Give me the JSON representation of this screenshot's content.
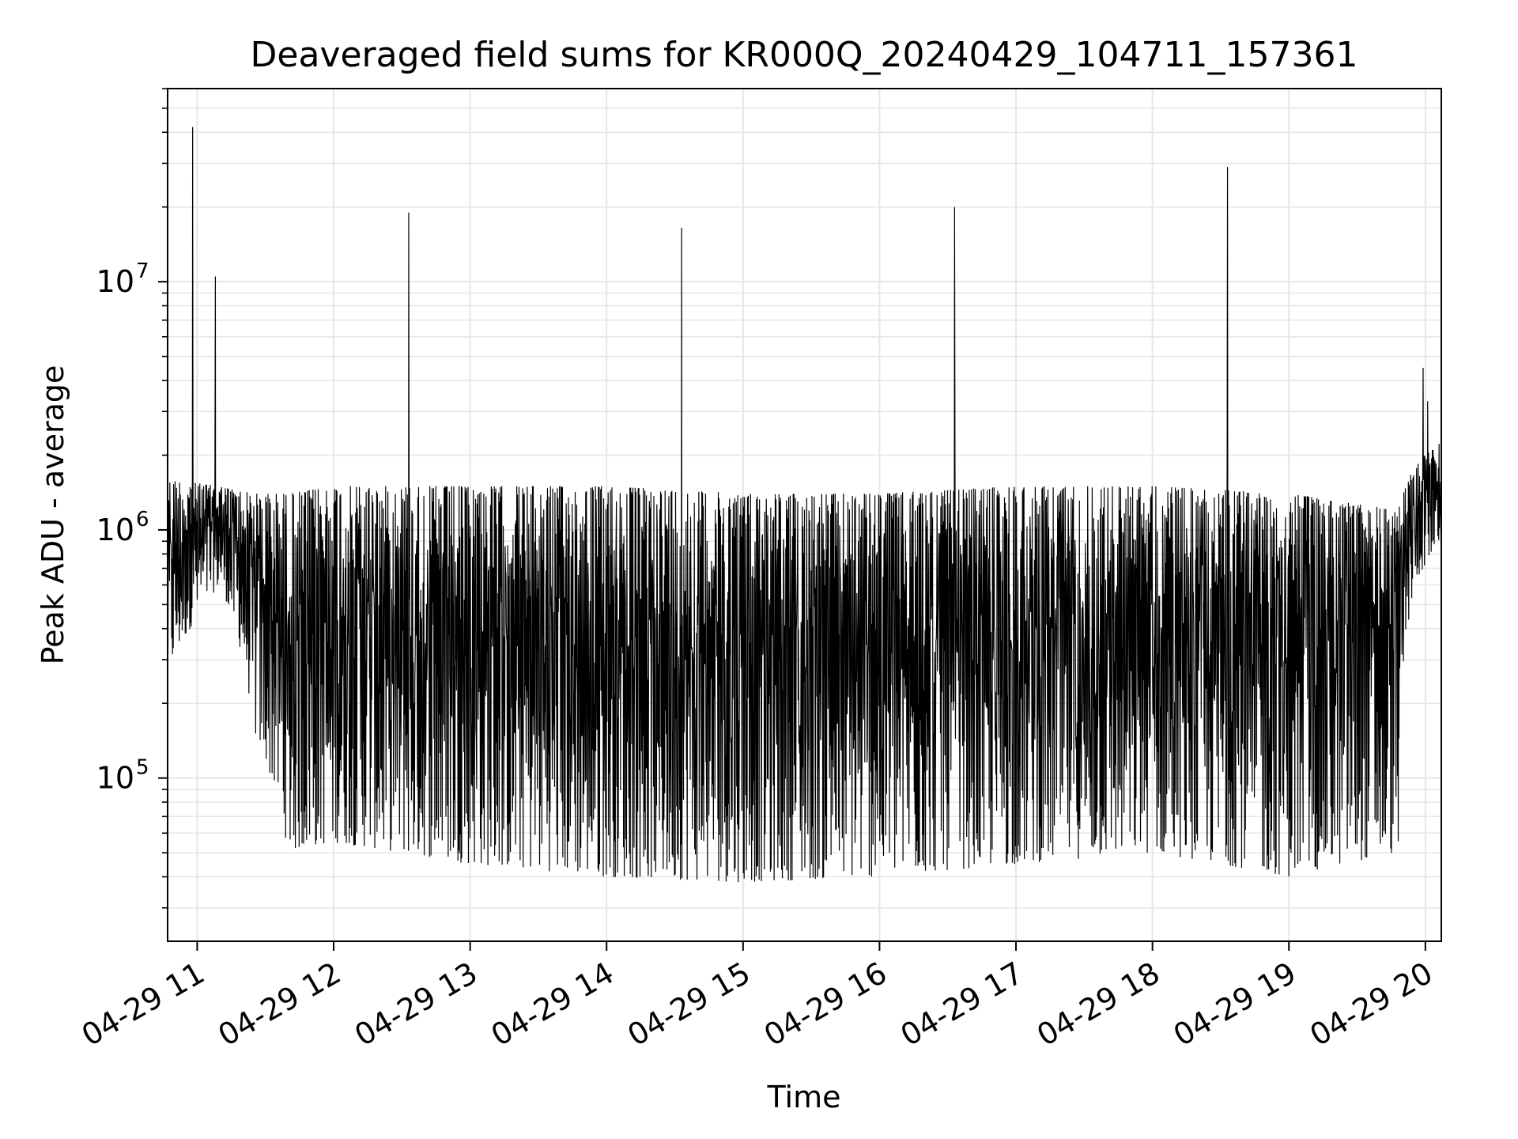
{
  "chart_data": {
    "type": "line",
    "title": "Deaveraged field sums for KR000Q_20240429_104711_157361",
    "xlabel": "Time",
    "ylabel": "Peak ADU - average",
    "yscale": "log",
    "xlim": [
      "2024-04-29 10:47",
      "2024-04-29 20:07"
    ],
    "ylim": [
      22000,
      60000000
    ],
    "x_ticks": [
      {
        "value": "2024-04-29 11:00",
        "label": "04-29 11"
      },
      {
        "value": "2024-04-29 12:00",
        "label": "04-29 12"
      },
      {
        "value": "2024-04-29 13:00",
        "label": "04-29 13"
      },
      {
        "value": "2024-04-29 14:00",
        "label": "04-29 14"
      },
      {
        "value": "2024-04-29 15:00",
        "label": "04-29 15"
      },
      {
        "value": "2024-04-29 16:00",
        "label": "04-29 16"
      },
      {
        "value": "2024-04-29 17:00",
        "label": "04-29 17"
      },
      {
        "value": "2024-04-29 18:00",
        "label": "04-29 18"
      },
      {
        "value": "2024-04-29 19:00",
        "label": "04-29 19"
      },
      {
        "value": "2024-04-29 20:00",
        "label": "04-29 20"
      }
    ],
    "y_ticks": [
      {
        "value": 100000,
        "base": "10",
        "exp": "5"
      },
      {
        "value": 1000000,
        "base": "10",
        "exp": "6"
      },
      {
        "value": 10000000,
        "base": "10",
        "exp": "7"
      }
    ],
    "grid": true,
    "minor_grid": true,
    "line_color": "#000000",
    "grid_color": "#e6e6e6",
    "series": [
      {
        "color": "#000000",
        "peaks": [
          {
            "x": "2024-04-29 10:58",
            "y": 42000000
          },
          {
            "x": "2024-04-29 11:08",
            "y": 10500000
          },
          {
            "x": "2024-04-29 12:33",
            "y": 19000000
          },
          {
            "x": "2024-04-29 14:33",
            "y": 16500000
          },
          {
            "x": "2024-04-29 16:33",
            "y": 20000000
          },
          {
            "x": "2024-04-29 18:33",
            "y": 29000000
          },
          {
            "x": "2024-04-29 19:59",
            "y": 4500000
          },
          {
            "x": "2024-04-29 20:01",
            "y": 3300000
          }
        ],
        "envelope": [
          {
            "x": "2024-04-29 10:47",
            "upper": 1600000,
            "lower": 250000
          },
          {
            "x": "2024-04-29 11:10",
            "upper": 1500000,
            "lower": 600000
          },
          {
            "x": "2024-04-29 11:25",
            "upper": 1400000,
            "lower": 150000
          },
          {
            "x": "2024-04-29 11:40",
            "upper": 1400000,
            "lower": 50000
          },
          {
            "x": "2024-04-29 12:00",
            "upper": 1500000,
            "lower": 55000
          },
          {
            "x": "2024-04-29 13:00",
            "upper": 1500000,
            "lower": 45000
          },
          {
            "x": "2024-04-29 14:00",
            "upper": 1500000,
            "lower": 40000
          },
          {
            "x": "2024-04-29 15:00",
            "upper": 1400000,
            "lower": 38000
          },
          {
            "x": "2024-04-29 16:00",
            "upper": 1400000,
            "lower": 40000
          },
          {
            "x": "2024-04-29 17:00",
            "upper": 1500000,
            "lower": 45000
          },
          {
            "x": "2024-04-29 18:00",
            "upper": 1500000,
            "lower": 50000
          },
          {
            "x": "2024-04-29 19:00",
            "upper": 1400000,
            "lower": 40000
          },
          {
            "x": "2024-04-29 19:48",
            "upper": 1200000,
            "lower": 50000
          },
          {
            "x": "2024-04-29 19:55",
            "upper": 1800000,
            "lower": 600000
          },
          {
            "x": "2024-04-29 20:07",
            "upper": 2300000,
            "lower": 900000
          }
        ]
      }
    ]
  }
}
